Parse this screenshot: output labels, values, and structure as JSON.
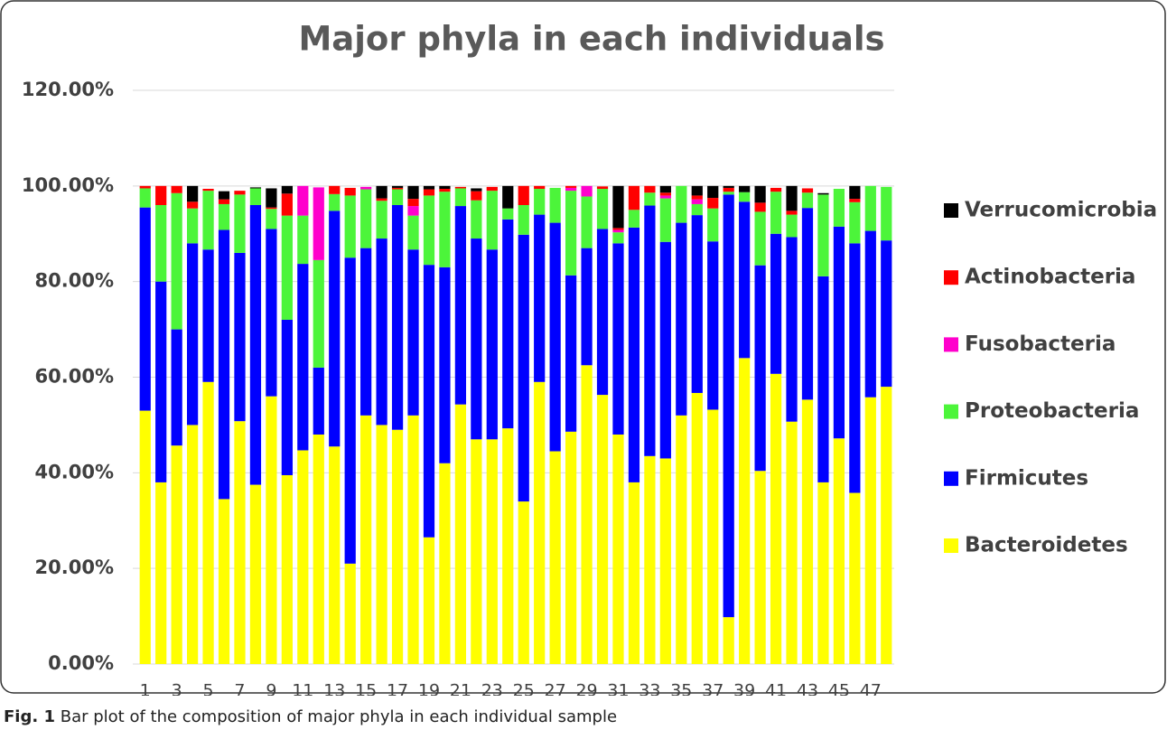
{
  "chart_data": {
    "type": "stacked_bar",
    "title": "Major phyla in each individuals",
    "categories": [
      "1",
      null,
      "3",
      null,
      "5",
      null,
      "7",
      null,
      "9",
      null,
      "11",
      null,
      "13",
      null,
      "15",
      null,
      "17",
      null,
      "19",
      null,
      "21",
      null,
      "23",
      null,
      "25",
      null,
      "27",
      null,
      "29",
      null,
      "31",
      null,
      "33",
      null,
      "35",
      null,
      "37",
      null,
      "39",
      null,
      "41",
      null,
      "43",
      null,
      "45",
      null,
      "47",
      null
    ],
    "series": [
      {
        "name": "Bacteroidetes",
        "color": "#ffff00",
        "values": [
          53,
          38,
          45.7,
          50,
          59,
          34.5,
          50.8,
          37.5,
          56,
          39.5,
          44.7,
          48,
          45.5,
          21,
          52,
          50,
          49,
          52,
          26.5,
          42,
          54.3,
          47,
          47,
          49.3,
          34,
          59,
          44.5,
          48.6,
          62.5,
          56.3,
          48,
          38,
          43.5,
          43,
          52,
          56.7,
          53.2,
          9.8,
          64,
          40.4,
          60.7,
          50.7,
          55.3,
          38,
          47.2,
          35.8,
          55.8,
          58
        ]
      },
      {
        "name": "Firmicutes",
        "color": "#0000ff",
        "values": [
          42.5,
          42,
          24.3,
          38,
          27.7,
          56.3,
          35.2,
          58.5,
          35,
          32.5,
          39,
          14,
          49.3,
          64,
          35,
          39,
          47,
          34.7,
          57,
          41,
          41.5,
          42,
          39.7,
          43.7,
          55.8,
          35,
          47.8,
          32.7,
          24.5,
          34.7,
          40,
          53.3,
          52.4,
          45.3,
          40.3,
          37.2,
          35.2,
          88.4,
          32.7,
          43,
          29.3,
          38.6,
          40.1,
          43.1,
          44.3,
          52.2,
          34.8,
          30.6
        ]
      },
      {
        "name": "Proteobacteria",
        "color": "#4cf53a",
        "values": [
          4,
          16,
          28.5,
          7.3,
          12.3,
          5.4,
          12.2,
          3.5,
          4.2,
          21.8,
          10.1,
          22.5,
          3.5,
          13,
          12.3,
          7.9,
          3.3,
          7.1,
          14.5,
          15.8,
          3.7,
          8,
          12.3,
          2.3,
          6.2,
          5.4,
          7.3,
          17.7,
          10.8,
          8.4,
          2.3,
          3.7,
          2.7,
          9.1,
          7.7,
          2.3,
          6.9,
          0.6,
          2,
          11.2,
          8.8,
          4.7,
          3.2,
          17.1,
          7.9,
          8.6,
          9.4,
          11.2
        ]
      },
      {
        "name": "Fusobacteria",
        "color": "#ff00cc",
        "values": [
          0,
          0,
          0,
          0,
          0,
          0,
          0,
          0,
          0,
          0,
          6.2,
          15.2,
          0,
          0,
          0.5,
          0,
          0,
          2,
          0,
          0,
          0,
          0,
          0,
          0,
          0,
          0,
          0,
          0.6,
          2.2,
          0,
          0.5,
          0,
          0,
          0.6,
          0,
          1,
          0,
          0,
          0,
          0,
          0,
          0,
          0,
          0,
          0,
          0,
          0,
          0
        ]
      },
      {
        "name": "Actinobacteria",
        "color": "#ff0000",
        "values": [
          0.5,
          4,
          1.5,
          1.4,
          0.4,
          1,
          0.8,
          0,
          0.3,
          4.6,
          0,
          0,
          1.7,
          1.6,
          0,
          0.5,
          0.3,
          1.5,
          1.3,
          0.6,
          0.3,
          1.9,
          0.8,
          0,
          4,
          0.6,
          0,
          0.4,
          0,
          0.5,
          0.4,
          5,
          1.4,
          0.6,
          0,
          0.8,
          2.2,
          0.8,
          0,
          1.9,
          0.8,
          0.8,
          0.9,
          0,
          0,
          0.7,
          0,
          0
        ]
      },
      {
        "name": "Verrucomicrobia",
        "color": "#000000",
        "values": [
          0,
          0,
          0,
          3.3,
          0,
          1.7,
          0,
          0.2,
          4,
          1.6,
          0,
          0,
          0,
          0,
          0,
          2.6,
          0.4,
          2.7,
          0.7,
          0.6,
          0,
          0.6,
          0,
          4.7,
          0,
          0,
          0,
          0,
          0,
          0,
          8.8,
          0,
          0,
          1.4,
          0,
          2,
          2.5,
          0.4,
          1.3,
          3.5,
          0,
          5.2,
          0,
          0.3,
          0,
          2.7,
          0,
          0
        ]
      }
    ],
    "ylim": [
      0,
      120
    ],
    "yticks": [
      {
        "value": 0,
        "label": "0.00%"
      },
      {
        "value": 20,
        "label": "20.00%"
      },
      {
        "value": 40,
        "label": "40.00%"
      },
      {
        "value": 60,
        "label": "60.00%"
      },
      {
        "value": 80,
        "label": "80.00%"
      },
      {
        "value": 100,
        "label": "100.00%"
      },
      {
        "value": 120,
        "label": "120.00%"
      }
    ],
    "grid": true,
    "legend": "right"
  },
  "caption": {
    "label": "Fig. 1",
    "text": "Bar plot of the composition of major phyla in each individual sample"
  }
}
